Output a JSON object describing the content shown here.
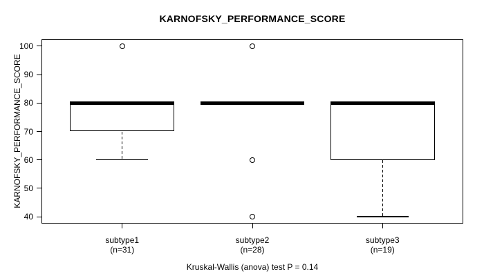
{
  "figure": {
    "background": "#ffffff",
    "foreground": "#000000"
  },
  "chart_data": {
    "type": "boxplot",
    "title": "KARNOFSKY_PERFORMANCE_SCORE",
    "ylabel": "KARNOFSKY_PERFORMANCE_SCORE",
    "xlabel": "",
    "caption": "Kruskal-Wallis (anova) test P = 0.14",
    "ylim": [
      40,
      100
    ],
    "yticks": [
      40,
      50,
      60,
      70,
      80,
      90,
      100
    ],
    "grid": false,
    "legend": null,
    "groups": [
      {
        "label": "subtype1",
        "sublabel": "(n=31)",
        "q1": 70,
        "median": 80,
        "q3": 80,
        "whisker_low": 60,
        "whisker_high": 80,
        "outliers": [
          100
        ]
      },
      {
        "label": "subtype2",
        "sublabel": "(n=28)",
        "q1": 80,
        "median": 80,
        "q3": 80,
        "whisker_low": 80,
        "whisker_high": 80,
        "outliers": [
          100,
          60,
          40
        ]
      },
      {
        "label": "subtype3",
        "sublabel": "(n=19)",
        "q1": 60,
        "median": 80,
        "q3": 80,
        "whisker_low": 40,
        "whisker_high": 80,
        "outliers": []
      }
    ]
  }
}
